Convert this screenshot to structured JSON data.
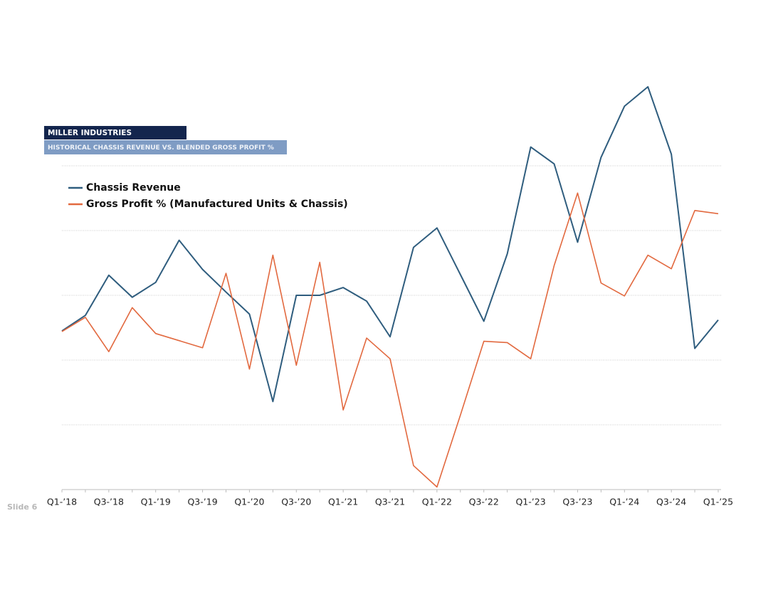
{
  "chart_data": {
    "type": "line",
    "title": "MILLER INDUSTRIES",
    "subtitle": "HISTORICAL CHASSIS REVENUE VS. BLENDED GROSS PROFIT %",
    "footer": "Slide 6",
    "categories": [
      "Q1-’18",
      null,
      "Q3-’18",
      null,
      "Q1-’19",
      null,
      "Q3-’19",
      null,
      "Q1-’20",
      null,
      "Q3-’20",
      null,
      "Q1-’21",
      null,
      "Q3-’21",
      null,
      "Q1-’22",
      null,
      "Q3-’22",
      null,
      "Q1-’23",
      null,
      "Q3-’23",
      null,
      "Q1-’24",
      null,
      "Q3-’24",
      null,
      "Q1-’25"
    ],
    "series": [
      {
        "name": "Chassis Revenue",
        "color": "#2f5d7e",
        "values": [
          2.45,
          2.69,
          3.31,
          2.97,
          3.2,
          3.85,
          3.4,
          3.05,
          2.71,
          1.36,
          3.0,
          3.0,
          3.12,
          2.91,
          2.36,
          3.74,
          4.04,
          3.32,
          2.6,
          3.64,
          5.29,
          5.03,
          3.82,
          5.13,
          5.92,
          6.22,
          5.18,
          2.18,
          2.62
        ]
      },
      {
        "name": "Gross Profit % (Manufactured Units & Chassis)",
        "color": "#e2693f",
        "values": [
          2.44,
          2.66,
          2.13,
          2.81,
          2.41,
          2.3,
          2.19,
          3.34,
          1.86,
          3.62,
          1.92,
          3.51,
          1.23,
          2.34,
          2.02,
          0.37,
          0.04,
          1.15,
          2.29,
          2.27,
          2.02,
          3.46,
          4.58,
          3.19,
          2.99,
          3.62,
          3.41,
          4.31,
          4.26
        ]
      }
    ],
    "ylim": [
      0,
      6.5
    ],
    "yticks": [
      1,
      2,
      3,
      4,
      5
    ],
    "grid": true
  }
}
